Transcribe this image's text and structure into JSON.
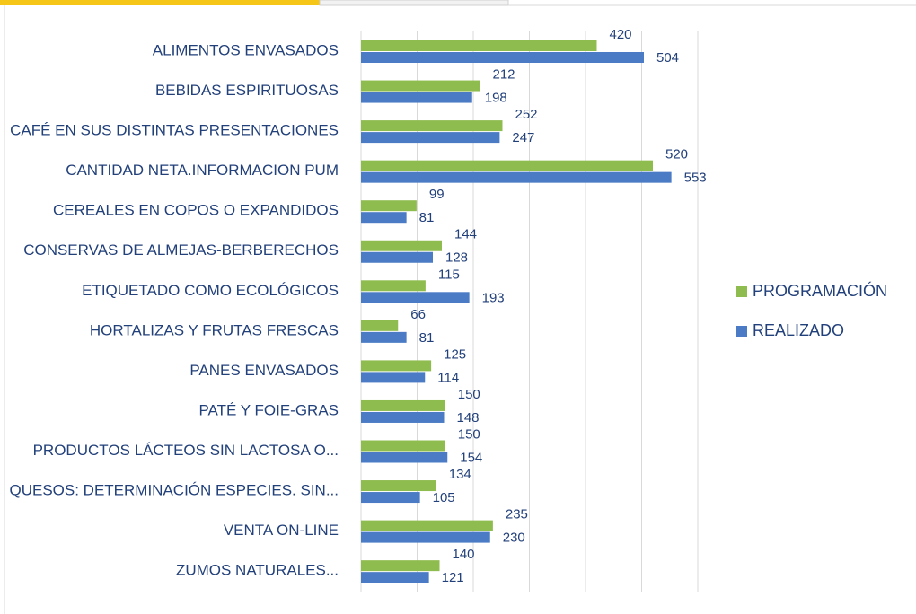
{
  "chart_data": {
    "type": "bar",
    "orientation": "horizontal",
    "categories": [
      "ALIMENTOS ENVASADOS",
      "BEBIDAS ESPIRITUOSAS",
      "CAFÉ EN SUS DISTINTAS PRESENTACIONES",
      "CANTIDAD NETA.INFORMACION PUM",
      "CEREALES EN COPOS O EXPANDIDOS",
      "CONSERVAS DE ALMEJAS-BERBERECHOS",
      "ETIQUETADO COMO ECOLÓGICOS",
      "HORTALIZAS Y FRUTAS FRESCAS",
      "PANES ENVASADOS",
      "PATÉ Y FOIE-GRAS",
      "PRODUCTOS LÁCTEOS SIN LACTOSA O...",
      "QUESOS: DETERMINACIÓN ESPECIES. SIN...",
      "VENTA ON-LINE",
      "ZUMOS NATURALES..."
    ],
    "series": [
      {
        "name": "PROGRAMACIÓN",
        "color": "#8fbc4f",
        "values": [
          420,
          212,
          252,
          520,
          99,
          144,
          115,
          66,
          125,
          150,
          150,
          134,
          235,
          140
        ]
      },
      {
        "name": "REALIZADO",
        "color": "#4a7bc4",
        "values": [
          504,
          198,
          247,
          553,
          81,
          128,
          193,
          81,
          114,
          148,
          154,
          105,
          230,
          121
        ]
      }
    ],
    "xlim": [
      0,
      600
    ],
    "xticks": [
      0,
      100,
      200,
      300,
      400,
      500,
      600
    ],
    "grid": true,
    "legend": "right"
  }
}
